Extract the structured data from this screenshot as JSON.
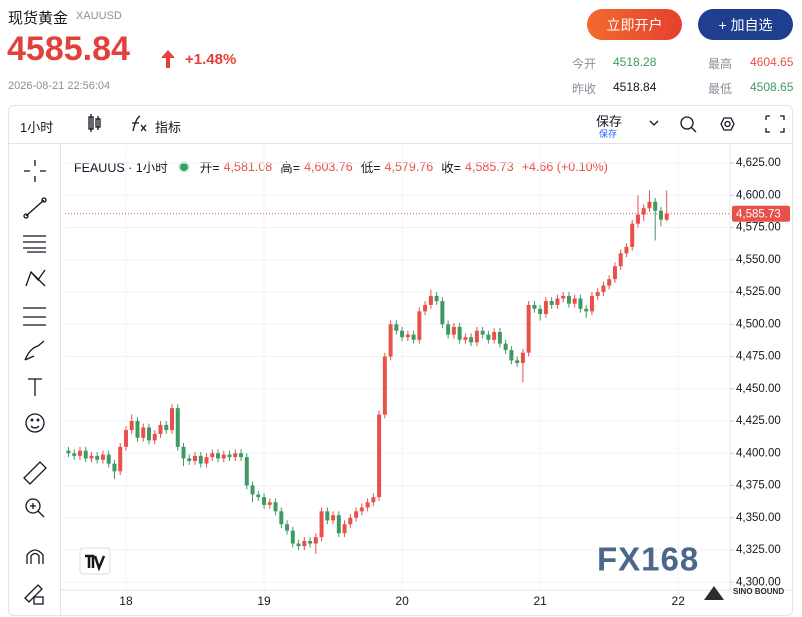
{
  "header": {
    "name": "现货黄金",
    "symbol": "XAUUSD",
    "price": "4585.84",
    "change": "+1.48%",
    "timestamp": "2026-08-21 22:56:04",
    "buttons": [
      "立即开户",
      "+ 加自选"
    ],
    "stats": [
      {
        "label": "今开",
        "value": "4518.28"
      },
      {
        "label": "最高",
        "value": "4604.65"
      },
      {
        "label": "昨收",
        "value": "4518.84"
      },
      {
        "label": "最低",
        "value": "4508.65"
      }
    ]
  },
  "toolbar": {
    "interval": "1小时",
    "indicators": "指标",
    "save": "保存",
    "save_sub": "保存"
  },
  "legend": {
    "symbol": "FEAUUS · 1小时",
    "items": [
      {
        "label": "开=",
        "value": "4,581.08"
      },
      {
        "label": "高=",
        "value": "4,603.76"
      },
      {
        "label": "低=",
        "value": "4,579.76"
      },
      {
        "label": "收=",
        "value": "4,585.73"
      }
    ],
    "change": "+4.66 (+0.10%)"
  },
  "watermark": "FX168",
  "corner_logo": "SINO BOUND",
  "chart_data": {
    "type": "candlestick",
    "up_color": "#e8504a",
    "down_color": "#3e9a62",
    "grid": true,
    "xlim": [
      -0.6,
      115
    ],
    "xticks": [
      {
        "value": 10,
        "label": "18"
      },
      {
        "value": 34,
        "label": "19"
      },
      {
        "value": 58,
        "label": "20"
      },
      {
        "value": 82,
        "label": "21"
      },
      {
        "value": 106,
        "label": "22"
      }
    ],
    "ylim": [
      4294,
      4639
    ],
    "yticks": [
      {
        "value": 4300,
        "label": "4,300.00"
      },
      {
        "value": 4325,
        "label": "4,325.00"
      },
      {
        "value": 4350,
        "label": "4,350.00"
      },
      {
        "value": 4375,
        "label": "4,375.00"
      },
      {
        "value": 4400,
        "label": "4,400.00"
      },
      {
        "value": 4425,
        "label": "4,425.00"
      },
      {
        "value": 4450,
        "label": "4,450.00"
      },
      {
        "value": 4475,
        "label": "4,475.00"
      },
      {
        "value": 4500,
        "label": "4,500.00"
      },
      {
        "value": 4525,
        "label": "4,525.00"
      },
      {
        "value": 4550,
        "label": "4,550.00"
      },
      {
        "value": 4575,
        "label": "4,575.00"
      },
      {
        "value": 4600,
        "label": "4,600.00"
      },
      {
        "value": 4625,
        "label": "4,625.00"
      }
    ],
    "last_price": {
      "value": 4585.73,
      "label": "4,585.73"
    },
    "ohlc": [
      [
        4402,
        4405,
        4397,
        4400
      ],
      [
        4400,
        4403,
        4395,
        4398
      ],
      [
        4398,
        4405,
        4395,
        4402
      ],
      [
        4402,
        4405,
        4393,
        4396
      ],
      [
        4396,
        4401,
        4393,
        4398
      ],
      [
        4398,
        4401,
        4392,
        4395
      ],
      [
        4395,
        4402,
        4392,
        4399
      ],
      [
        4399,
        4402,
        4389,
        4392
      ],
      [
        4392,
        4395,
        4380,
        4386
      ],
      [
        4386,
        4408,
        4383,
        4405
      ],
      [
        4405,
        4421,
        4402,
        4418
      ],
      [
        4418,
        4430,
        4415,
        4425
      ],
      [
        4425,
        4428,
        4409,
        4412
      ],
      [
        4412,
        4423,
        4409,
        4420
      ],
      [
        4420,
        4423,
        4407,
        4410
      ],
      [
        4410,
        4418,
        4407,
        4415
      ],
      [
        4415,
        4425,
        4412,
        4422
      ],
      [
        4422,
        4425,
        4415,
        4418
      ],
      [
        4418,
        4438,
        4415,
        4435
      ],
      [
        4435,
        4438,
        4402,
        4405
      ],
      [
        4405,
        4408,
        4390,
        4396
      ],
      [
        4396,
        4399,
        4391,
        4394
      ],
      [
        4394,
        4401,
        4391,
        4398
      ],
      [
        4398,
        4401,
        4389,
        4392
      ],
      [
        4392,
        4400,
        4389,
        4397
      ],
      [
        4397,
        4403,
        4394,
        4400
      ],
      [
        4400,
        4403,
        4393,
        4396
      ],
      [
        4396,
        4402,
        4393,
        4399
      ],
      [
        4399,
        4402,
        4394,
        4397
      ],
      [
        4397,
        4403,
        4394,
        4400
      ],
      [
        4400,
        4403,
        4394,
        4397
      ],
      [
        4397,
        4400,
        4372,
        4375
      ],
      [
        4375,
        4378,
        4362,
        4368
      ],
      [
        4368,
        4371,
        4363,
        4366
      ],
      [
        4366,
        4369,
        4357,
        4360
      ],
      [
        4360,
        4365,
        4357,
        4362
      ],
      [
        4362,
        4365,
        4352,
        4355
      ],
      [
        4355,
        4358,
        4342,
        4345
      ],
      [
        4345,
        4348,
        4337,
        4340
      ],
      [
        4340,
        4343,
        4327,
        4330
      ],
      [
        4330,
        4333,
        4325,
        4328
      ],
      [
        4328,
        4335,
        4325,
        4332
      ],
      [
        4332,
        4335,
        4327,
        4330
      ],
      [
        4330,
        4338,
        4322,
        4335
      ],
      [
        4335,
        4358,
        4332,
        4355
      ],
      [
        4355,
        4358,
        4345,
        4348
      ],
      [
        4348,
        4355,
        4345,
        4352
      ],
      [
        4352,
        4355,
        4335,
        4338
      ],
      [
        4338,
        4348,
        4335,
        4345
      ],
      [
        4345,
        4353,
        4342,
        4350
      ],
      [
        4350,
        4358,
        4347,
        4355
      ],
      [
        4355,
        4361,
        4352,
        4358
      ],
      [
        4358,
        4365,
        4355,
        4362
      ],
      [
        4362,
        4369,
        4359,
        4366
      ],
      [
        4366,
        4433,
        4363,
        4430
      ],
      [
        4430,
        4478,
        4427,
        4475
      ],
      [
        4475,
        4503,
        4472,
        4500
      ],
      [
        4500,
        4503,
        4492,
        4495
      ],
      [
        4495,
        4498,
        4487,
        4490
      ],
      [
        4490,
        4495,
        4487,
        4492
      ],
      [
        4492,
        4495,
        4485,
        4488
      ],
      [
        4488,
        4513,
        4485,
        4510
      ],
      [
        4510,
        4518,
        4507,
        4515
      ],
      [
        4515,
        4527,
        4512,
        4522
      ],
      [
        4522,
        4525,
        4515,
        4518
      ],
      [
        4518,
        4521,
        4497,
        4500
      ],
      [
        4500,
        4503,
        4489,
        4492
      ],
      [
        4492,
        4501,
        4489,
        4498
      ],
      [
        4498,
        4501,
        4485,
        4488
      ],
      [
        4488,
        4493,
        4485,
        4490
      ],
      [
        4490,
        4493,
        4483,
        4486
      ],
      [
        4486,
        4498,
        4483,
        4495
      ],
      [
        4495,
        4498,
        4489,
        4492
      ],
      [
        4492,
        4495,
        4485,
        4488
      ],
      [
        4488,
        4497,
        4485,
        4494
      ],
      [
        4494,
        4497,
        4482,
        4485
      ],
      [
        4485,
        4488,
        4477,
        4480
      ],
      [
        4480,
        4483,
        4469,
        4472
      ],
      [
        4472,
        4475,
        4467,
        4470
      ],
      [
        4470,
        4481,
        4455,
        4478
      ],
      [
        4478,
        4518,
        4475,
        4515
      ],
      [
        4515,
        4518,
        4509,
        4512
      ],
      [
        4512,
        4515,
        4503,
        4508
      ],
      [
        4508,
        4521,
        4505,
        4518
      ],
      [
        4518,
        4521,
        4512,
        4515
      ],
      [
        4515,
        4523,
        4512,
        4520
      ],
      [
        4520,
        4525,
        4517,
        4522
      ],
      [
        4522,
        4525,
        4513,
        4516
      ],
      [
        4516,
        4523,
        4513,
        4520
      ],
      [
        4520,
        4523,
        4509,
        4512
      ],
      [
        4512,
        4515,
        4505,
        4510
      ],
      [
        4510,
        4525,
        4507,
        4522
      ],
      [
        4522,
        4528,
        4519,
        4525
      ],
      [
        4525,
        4533,
        4522,
        4530
      ],
      [
        4530,
        4538,
        4527,
        4535
      ],
      [
        4535,
        4548,
        4532,
        4545
      ],
      [
        4545,
        4558,
        4542,
        4555
      ],
      [
        4555,
        4563,
        4552,
        4560
      ],
      [
        4560,
        4581,
        4557,
        4578
      ],
      [
        4578,
        4600,
        4575,
        4585
      ],
      [
        4585,
        4593,
        4580,
        4590
      ],
      [
        4590,
        4604,
        4587,
        4595
      ],
      [
        4595,
        4598,
        4565,
        4588
      ],
      [
        4588,
        4591,
        4576,
        4581.08
      ],
      [
        4581.08,
        4603.76,
        4579.76,
        4585.73
      ]
    ]
  }
}
